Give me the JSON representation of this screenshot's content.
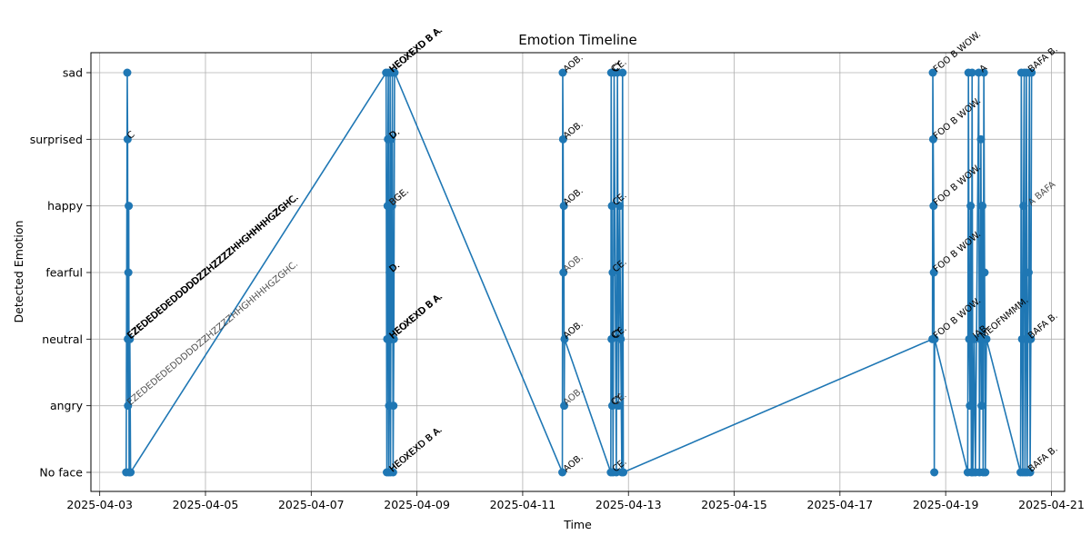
{
  "chart_data": {
    "type": "line",
    "title": "Emotion Timeline",
    "xlabel": "Time",
    "ylabel": "Detected Emotion",
    "x_start": "2025-04-03",
    "xlim": [
      "2025-04-02T20:00",
      "2025-04-21T06:00"
    ],
    "x_ticks": [
      "2025-04-03",
      "2025-04-05",
      "2025-04-07",
      "2025-04-09",
      "2025-04-11",
      "2025-04-13",
      "2025-04-15",
      "2025-04-17",
      "2025-04-19",
      "2025-04-21"
    ],
    "y_categories": [
      "No face",
      "angry",
      "neutral",
      "fearful",
      "happy",
      "surprised",
      "sad"
    ],
    "grid": true,
    "color": "#1f77b4",
    "series": [
      {
        "points": [
          [
            "2025-04-03T12:00",
            "No face"
          ],
          [
            "2025-04-03T12:30",
            "sad"
          ],
          [
            "2025-04-03T12:40",
            "surprised"
          ],
          [
            "2025-04-03T12:45",
            "neutral"
          ],
          [
            "2025-04-03T12:50",
            "angry"
          ],
          [
            "2025-04-03T13:00",
            "fearful"
          ],
          [
            "2025-04-03T13:10",
            "happy"
          ],
          [
            "2025-04-03T13:20",
            "No face"
          ],
          [
            "2025-04-03T13:40",
            "neutral"
          ],
          [
            "2025-04-03T14:00",
            "No face"
          ],
          [
            "2025-04-08T10:00",
            "sad"
          ],
          [
            "2025-04-08T10:20",
            "No face"
          ],
          [
            "2025-04-08T10:30",
            "neutral"
          ],
          [
            "2025-04-08T10:40",
            "happy"
          ],
          [
            "2025-04-08T10:50",
            "surprised"
          ],
          [
            "2025-04-08T11:00",
            "sad"
          ],
          [
            "2025-04-08T11:10",
            "No face"
          ],
          [
            "2025-04-08T11:20",
            "angry"
          ],
          [
            "2025-04-08T11:30",
            "neutral"
          ],
          [
            "2025-04-08T11:40",
            "fearful"
          ],
          [
            "2025-04-08T11:50",
            "sad"
          ],
          [
            "2025-04-08T12:00",
            "No face"
          ],
          [
            "2025-04-08T12:20",
            "surprised"
          ],
          [
            "2025-04-08T12:30",
            "neutral"
          ],
          [
            "2025-04-08T12:40",
            "happy"
          ],
          [
            "2025-04-08T12:50",
            "sad"
          ],
          [
            "2025-04-08T13:10",
            "No face"
          ],
          [
            "2025-04-08T13:20",
            "angry"
          ],
          [
            "2025-04-08T13:30",
            "neutral"
          ],
          [
            "2025-04-08T13:50",
            "sad"
          ],
          [
            "2025-04-11T18:00",
            "No face"
          ],
          [
            "2025-04-11T18:10",
            "sad"
          ],
          [
            "2025-04-11T18:20",
            "surprised"
          ],
          [
            "2025-04-11T18:30",
            "fearful"
          ],
          [
            "2025-04-11T18:40",
            "happy"
          ],
          [
            "2025-04-11T18:50",
            "angry"
          ],
          [
            "2025-04-11T19:00",
            "neutral"
          ],
          [
            "2025-04-12T16:00",
            "No face"
          ],
          [
            "2025-04-12T16:10",
            "sad"
          ],
          [
            "2025-04-12T16:20",
            "neutral"
          ],
          [
            "2025-04-12T16:30",
            "happy"
          ],
          [
            "2025-04-12T16:40",
            "angry"
          ],
          [
            "2025-04-12T16:50",
            "fearful"
          ],
          [
            "2025-04-12T17:00",
            "No face"
          ],
          [
            "2025-04-12T17:30",
            "sad"
          ],
          [
            "2025-04-12T18:30",
            "No face"
          ],
          [
            "2025-04-12T19:00",
            "sad"
          ],
          [
            "2025-04-12T19:30",
            "angry"
          ],
          [
            "2025-04-12T20:00",
            "happy"
          ],
          [
            "2025-04-12T20:30",
            "neutral"
          ],
          [
            "2025-04-12T21:00",
            "No face"
          ],
          [
            "2025-04-12T21:20",
            "sad"
          ],
          [
            "2025-04-12T21:40",
            "No face"
          ],
          [
            "2025-04-18T18:00",
            "neutral"
          ],
          [
            "2025-04-18T18:10",
            "sad"
          ],
          [
            "2025-04-18T18:20",
            "surprised"
          ],
          [
            "2025-04-18T18:30",
            "happy"
          ],
          [
            "2025-04-18T18:40",
            "fearful"
          ],
          [
            "2025-04-18T18:50",
            "No face"
          ],
          [
            "2025-04-18T19:00",
            "neutral"
          ],
          [
            "2025-04-19T10:00",
            "No face"
          ],
          [
            "2025-04-19T10:20",
            "sad"
          ],
          [
            "2025-04-19T10:40",
            "neutral"
          ],
          [
            "2025-04-19T11:00",
            "angry"
          ],
          [
            "2025-04-19T11:20",
            "happy"
          ],
          [
            "2025-04-19T11:40",
            "No face"
          ],
          [
            "2025-04-19T12:00",
            "sad"
          ],
          [
            "2025-04-19T12:20",
            "No face"
          ],
          [
            "2025-04-19T13:00",
            "neutral"
          ],
          [
            "2025-04-19T13:30",
            "No face"
          ],
          [
            "2025-04-19T15:00",
            "sad"
          ],
          [
            "2025-04-19T15:20",
            "No face"
          ],
          [
            "2025-04-19T15:40",
            "neutral"
          ],
          [
            "2025-04-19T16:00",
            "surprised"
          ],
          [
            "2025-04-19T16:20",
            "angry"
          ],
          [
            "2025-04-19T16:40",
            "happy"
          ],
          [
            "2025-04-19T17:00",
            "No face"
          ],
          [
            "2025-04-19T17:20",
            "sad"
          ],
          [
            "2025-04-19T17:40",
            "fearful"
          ],
          [
            "2025-04-19T18:00",
            "No face"
          ],
          [
            "2025-04-19T18:30",
            "neutral"
          ],
          [
            "2025-04-20T10:00",
            "No face"
          ],
          [
            "2025-04-20T10:20",
            "sad"
          ],
          [
            "2025-04-20T10:40",
            "neutral"
          ],
          [
            "2025-04-20T11:00",
            "No face"
          ],
          [
            "2025-04-20T11:20",
            "happy"
          ],
          [
            "2025-04-20T11:40",
            "sad"
          ],
          [
            "2025-04-20T12:00",
            "No face"
          ],
          [
            "2025-04-20T12:20",
            "neutral"
          ],
          [
            "2025-04-20T12:40",
            "sad"
          ],
          [
            "2025-04-20T13:00",
            "No face"
          ],
          [
            "2025-04-20T13:20",
            "neutral"
          ],
          [
            "2025-04-20T13:40",
            "fearful"
          ],
          [
            "2025-04-20T14:00",
            "sad"
          ],
          [
            "2025-04-20T14:20",
            "No face"
          ],
          [
            "2025-04-20T14:40",
            "neutral"
          ],
          [
            "2025-04-20T15:00",
            "sad"
          ]
        ]
      }
    ],
    "annotations": [
      {
        "x": "2025-04-03T13:00",
        "y": "surprised",
        "text": "C"
      },
      {
        "x": "2025-04-03T13:00",
        "y": "neutral",
        "text": "EZEDEDEDEDDDDDZZHZZZZHHGHHHHGZGHC."
      },
      {
        "x": "2025-04-03T13:10",
        "y": "neutral",
        "text": "EZEDEDEDEDDDDDZZHZZZZHHGHHHHGZGHC."
      },
      {
        "x": "2025-04-03T13:20",
        "y": "neutral",
        "text": "EZEDEDEDEDDDDDZZHZZZZHHGHHHHGZGHC."
      },
      {
        "x": "2025-04-03T13:00",
        "y": "angry",
        "text": "EZEDEDEDEDDDDDZZHZZZZHHGHHHHGZGHC.",
        "faint": true
      },
      {
        "x": "2025-04-08T12:00",
        "y": "sad",
        "text": "HEOXEXD B A."
      },
      {
        "x": "2025-04-08T12:10",
        "y": "sad",
        "text": "HEOXEXD B A."
      },
      {
        "x": "2025-04-08T12:20",
        "y": "sad",
        "text": "HEOXEXD B A."
      },
      {
        "x": "2025-04-08T12:00",
        "y": "surprised",
        "text": "D."
      },
      {
        "x": "2025-04-08T12:10",
        "y": "surprised",
        "text": "D."
      },
      {
        "x": "2025-04-08T12:00",
        "y": "happy",
        "text": "BGE."
      },
      {
        "x": "2025-04-08T12:10",
        "y": "happy",
        "text": "BGE.",
        "faint": true
      },
      {
        "x": "2025-04-08T12:00",
        "y": "fearful",
        "text": "D."
      },
      {
        "x": "2025-04-08T12:10",
        "y": "fearful",
        "text": "D."
      },
      {
        "x": "2025-04-08T12:00",
        "y": "neutral",
        "text": "HEOXEXD B A."
      },
      {
        "x": "2025-04-08T12:10",
        "y": "neutral",
        "text": "HEOXEXD B A."
      },
      {
        "x": "2025-04-08T12:20",
        "y": "neutral",
        "text": "HEOXEXD B A."
      },
      {
        "x": "2025-04-08T12:00",
        "y": "No face",
        "text": "HEOXEXD B A."
      },
      {
        "x": "2025-04-08T12:10",
        "y": "No face",
        "text": "HEOXEXD B A."
      },
      {
        "x": "2025-04-11T19:00",
        "y": "sad",
        "text": "AOB."
      },
      {
        "x": "2025-04-11T19:00",
        "y": "surprised",
        "text": "AOB."
      },
      {
        "x": "2025-04-11T19:00",
        "y": "happy",
        "text": "AOB."
      },
      {
        "x": "2025-04-11T19:00",
        "y": "fearful",
        "text": "AOB.",
        "faint": true
      },
      {
        "x": "2025-04-11T19:00",
        "y": "neutral",
        "text": "AOB."
      },
      {
        "x": "2025-04-11T19:00",
        "y": "angry",
        "text": "AOB.",
        "faint": true
      },
      {
        "x": "2025-04-11T19:00",
        "y": "No face",
        "text": "AOB."
      },
      {
        "x": "2025-04-12T16:40",
        "y": "sad",
        "text": "CY"
      },
      {
        "x": "2025-04-12T17:20",
        "y": "sad",
        "text": "CE."
      },
      {
        "x": "2025-04-12T17:20",
        "y": "happy",
        "text": "CE."
      },
      {
        "x": "2025-04-12T17:20",
        "y": "fearful",
        "text": "CE."
      },
      {
        "x": "2025-04-12T16:40",
        "y": "neutral",
        "text": "CY"
      },
      {
        "x": "2025-04-12T17:20",
        "y": "neutral",
        "text": "CE."
      },
      {
        "x": "2025-04-12T16:40",
        "y": "angry",
        "text": "CY"
      },
      {
        "x": "2025-04-12T17:20",
        "y": "angry",
        "text": "CE.",
        "faint": true
      },
      {
        "x": "2025-04-12T17:20",
        "y": "No face",
        "text": "CE."
      },
      {
        "x": "2025-04-18T19:00",
        "y": "sad",
        "text": "FOO B WOW."
      },
      {
        "x": "2025-04-18T19:00",
        "y": "surprised",
        "text": "FOO B WOW."
      },
      {
        "x": "2025-04-18T19:00",
        "y": "happy",
        "text": "FOO B WOW."
      },
      {
        "x": "2025-04-18T19:00",
        "y": "fearful",
        "text": "FOO B WOW."
      },
      {
        "x": "2025-04-18T19:00",
        "y": "neutral",
        "text": "FOO B WOW."
      },
      {
        "x": "2025-04-19T16:00",
        "y": "sad",
        "text": "A"
      },
      {
        "x": "2025-04-19T13:00",
        "y": "neutral",
        "text": "JAB."
      },
      {
        "x": "2025-04-19T16:20",
        "y": "neutral",
        "text": "MEOFNMMM."
      },
      {
        "x": "2025-04-20T14:00",
        "y": "sad",
        "text": "BAFA B."
      },
      {
        "x": "2025-04-20T14:00",
        "y": "happy",
        "text": "A BAFA",
        "faint": true
      },
      {
        "x": "2025-04-20T14:00",
        "y": "neutral",
        "text": "BAFA B."
      },
      {
        "x": "2025-04-20T14:00",
        "y": "No face",
        "text": "BAFA B."
      }
    ]
  }
}
